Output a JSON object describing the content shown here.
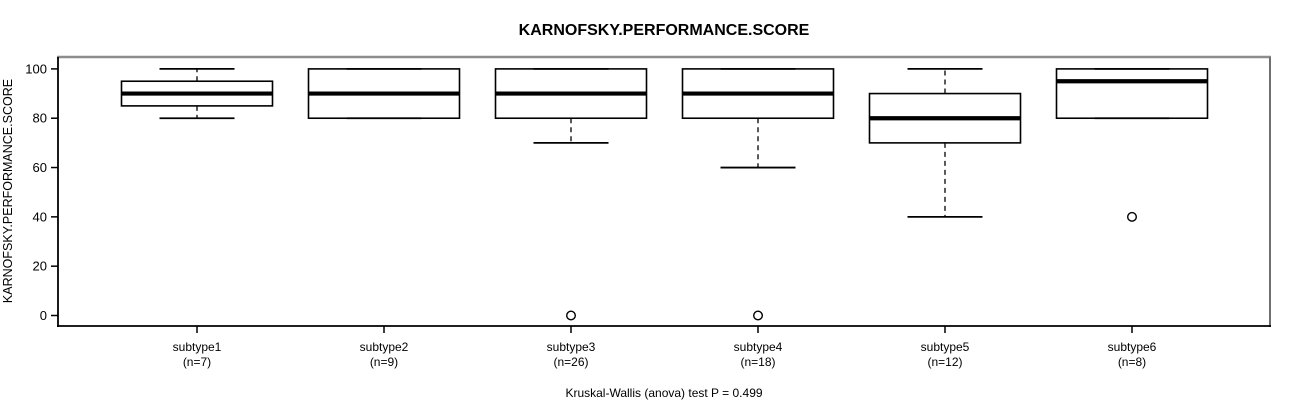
{
  "chart_data": {
    "type": "boxplot",
    "title": "KARNOFSKY.PERFORMANCE.SCORE",
    "ylabel": "KARNOFSKY.PERFORMANCE.SCORE",
    "footnote": "Kruskal-Wallis (anova) test P = 0.499",
    "ylim": [
      0,
      100
    ],
    "yticks": [
      0,
      20,
      40,
      60,
      80,
      100
    ],
    "grid": false,
    "legend": "none",
    "colors": {
      "background": "#ffffff",
      "box_fill": "#ffffff",
      "box_stroke": "#000000",
      "median": "#000000",
      "axis": "#000000",
      "frame_top": "#8c8c8c",
      "frame_right": "#6f6f6f",
      "text": "#000000"
    },
    "groups": [
      {
        "label": "subtype1",
        "count_label": "(n=7)",
        "whisker_low": 80,
        "q1": 85,
        "median": 90,
        "q3": 95,
        "whisker_high": 100,
        "outliers": []
      },
      {
        "label": "subtype2",
        "count_label": "(n=9)",
        "whisker_low": 80,
        "q1": 80,
        "median": 90,
        "q3": 100,
        "whisker_high": 100,
        "outliers": []
      },
      {
        "label": "subtype3",
        "count_label": "(n=26)",
        "whisker_low": 70,
        "q1": 80,
        "median": 90,
        "q3": 100,
        "whisker_high": 100,
        "outliers": [
          0
        ]
      },
      {
        "label": "subtype4",
        "count_label": "(n=18)",
        "whisker_low": 60,
        "q1": 80,
        "median": 90,
        "q3": 100,
        "whisker_high": 100,
        "outliers": [
          0
        ]
      },
      {
        "label": "subtype5",
        "count_label": "(n=12)",
        "whisker_low": 40,
        "q1": 70,
        "median": 80,
        "q3": 90,
        "whisker_high": 100,
        "outliers": []
      },
      {
        "label": "subtype6",
        "count_label": "(n=8)",
        "whisker_low": 80,
        "q1": 80,
        "median": 95,
        "q3": 100,
        "whisker_high": 100,
        "outliers": [
          40
        ]
      }
    ]
  }
}
